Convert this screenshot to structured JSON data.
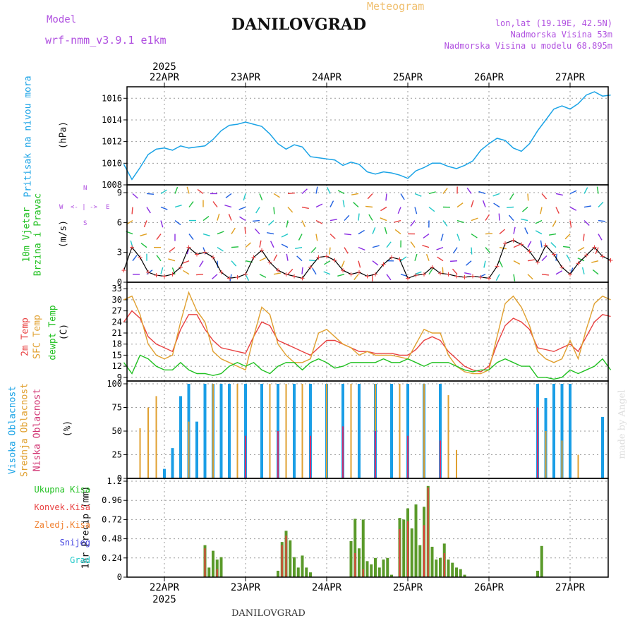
{
  "header": {
    "model_label": "Model",
    "model_name": "wrf-nmm_v3.9.1 e1km",
    "station": "DANILOVGRAD",
    "product": "Meteogram",
    "coords": "lon,lat (19.19E, 42.5N)",
    "elevation": "Nadmorska Visina 53m",
    "model_elevation": "Nadmorska Visina u modelu 68.895m",
    "bottom_station": "DANILOVGRAD",
    "watermark": "made by Angel"
  },
  "time_axis": {
    "year": "2025",
    "days": [
      "22APR",
      "23APR",
      "24APR",
      "25APR",
      "26APR",
      "27APR"
    ]
  },
  "colors": {
    "pressure": "#1aa3e6",
    "temp2m": "#e84040",
    "sfc": "#e0a030",
    "dewpt": "#20c020",
    "high_cloud": "#1a9ee6",
    "mid_cloud": "#e0a030",
    "low_cloud": "#d03070",
    "total_precip": "#5a9a2a",
    "conv_precip": "#e84040",
    "wind_label": "#20c020",
    "model_text": "#b050e0"
  },
  "panels": {
    "pressure": {
      "label": "Pritisak na nivou mora",
      "unit": "(hPa)",
      "ticks": [
        "1008",
        "1010",
        "1012",
        "1014",
        "1016"
      ]
    },
    "wind": {
      "label1": "10m Vjetar",
      "label2": "Brzina i Pravac",
      "unit": "(m/s)",
      "ticks": [
        "0",
        "3",
        "6",
        "9"
      ],
      "compass_n": "N",
      "compass_s": "S",
      "compass_w": "W",
      "compass_e": "E",
      "compass_dash": "<- | ->"
    },
    "temp": {
      "label_2m": "2m Temp",
      "label_sfc": "SFC Temp",
      "label_dew": "dewpt Temp",
      "unit": "(C)",
      "ticks": [
        "9",
        "12",
        "15",
        "18",
        "21",
        "24",
        "27",
        "30",
        "33"
      ]
    },
    "cloud": {
      "label_high": "Visoka Oblacnost",
      "label_mid": "Srednja Oblacnost",
      "label_low": "Niska Oblacnost",
      "unit": "(%)",
      "ticks": [
        "0",
        "25",
        "50",
        "75",
        "100"
      ]
    },
    "precip": {
      "unit": "1hr Precip (mm)",
      "ticks": [
        "0",
        "0.24",
        "0.48",
        "0.72",
        "0.96",
        "1.2"
      ],
      "legend": [
        {
          "label": "Ukupna Kisa",
          "color": "#20c020"
        },
        {
          "label": "Konvek.Kisa",
          "color": "#e84040"
        },
        {
          "label": "Zaledj.Kisa",
          "color": "#f08030"
        },
        {
          "label": "Snijeg",
          "color": "#4040e0"
        },
        {
          "label": "Grad",
          "color": "#20c8c8"
        }
      ]
    }
  },
  "chart_data": [
    {
      "type": "line",
      "title": "",
      "ylabel": "Pritisak na nivou mora (hPa)",
      "ylim": [
        1008,
        1016.8
      ],
      "x_unit": "days from 22APR 00UTC",
      "series": [
        {
          "name": "Pritisak na nivou mora",
          "x": [
            -0.5,
            -0.4,
            -0.3,
            -0.2,
            -0.1,
            0,
            0.1,
            0.2,
            0.3,
            0.4,
            0.5,
            0.6,
            0.7,
            0.8,
            0.9,
            1.0,
            1.1,
            1.2,
            1.3,
            1.4,
            1.5,
            1.6,
            1.7,
            1.8,
            1.9,
            2.0,
            2.1,
            2.2,
            2.3,
            2.4,
            2.5,
            2.6,
            2.7,
            2.8,
            2.9,
            3.0,
            3.1,
            3.2,
            3.3,
            3.4,
            3.5,
            3.6,
            3.7,
            3.8,
            3.9,
            4.0,
            4.1,
            4.2,
            4.3,
            4.4,
            4.5,
            4.6,
            4.7,
            4.8,
            4.9,
            5.0,
            5.1,
            5.2,
            5.3,
            5.4,
            5.5
          ],
          "values": [
            1009.9,
            1008.5,
            1009.6,
            1010.8,
            1011.3,
            1011.4,
            1011.2,
            1011.6,
            1011.4,
            1011.5,
            1011.6,
            1012.2,
            1013.0,
            1013.5,
            1013.6,
            1013.8,
            1013.6,
            1013.4,
            1012.7,
            1011.8,
            1011.3,
            1011.7,
            1011.5,
            1010.6,
            1010.5,
            1010.4,
            1010.3,
            1009.8,
            1010.1,
            1009.9,
            1009.2,
            1009.0,
            1009.2,
            1009.1,
            1008.9,
            1008.6,
            1009.3,
            1009.6,
            1010.0,
            1010.0,
            1009.7,
            1009.5,
            1009.8,
            1010.2,
            1011.2,
            1011.8,
            1012.3,
            1012.1,
            1011.4,
            1011.1,
            1011.8,
            1013.0,
            1014.0,
            1015.0,
            1015.3,
            1015.0,
            1015.5,
            1016.3,
            1016.6,
            1016.2,
            1016.3
          ]
        }
      ]
    },
    {
      "type": "line",
      "title": "",
      "ylabel": "10m Vjetar Brzina i Pravac (m/s)",
      "ylim": [
        0,
        9.5
      ],
      "series": [
        {
          "name": "10m Vjetar",
          "x": [
            -0.5,
            -0.4,
            -0.3,
            -0.2,
            -0.1,
            0,
            0.1,
            0.2,
            0.3,
            0.4,
            0.5,
            0.6,
            0.7,
            0.8,
            0.9,
            1.0,
            1.1,
            1.2,
            1.3,
            1.4,
            1.5,
            1.6,
            1.7,
            1.8,
            1.9,
            2.0,
            2.1,
            2.2,
            2.3,
            2.4,
            2.5,
            2.6,
            2.7,
            2.8,
            2.9,
            3.0,
            3.1,
            3.2,
            3.3,
            3.4,
            3.5,
            3.6,
            3.7,
            3.8,
            3.9,
            4.0,
            4.1,
            4.2,
            4.3,
            4.4,
            4.5,
            4.6,
            4.7,
            4.8,
            4.9,
            5.0,
            5.1,
            5.2,
            5.3,
            5.4,
            5.5
          ],
          "values": [
            1.2,
            3.5,
            2.5,
            1.0,
            0.7,
            0.6,
            0.8,
            1.5,
            3.5,
            2.8,
            3.0,
            2.5,
            1.0,
            0.4,
            0.5,
            0.8,
            2.5,
            3.2,
            2.0,
            1.2,
            0.8,
            0.6,
            0.4,
            1.5,
            2.5,
            2.6,
            2.2,
            1.2,
            0.8,
            1.0,
            0.6,
            0.8,
            1.8,
            2.5,
            2.3,
            0.4,
            0.7,
            0.8,
            1.5,
            0.9,
            0.8,
            0.6,
            0.5,
            0.6,
            0.5,
            0.4,
            1.6,
            3.9,
            4.2,
            3.8,
            3.1,
            2.0,
            3.7,
            2.8,
            1.5,
            0.8,
            1.9,
            2.7,
            3.5,
            2.6,
            2.2
          ]
        }
      ]
    },
    {
      "type": "line",
      "title": "",
      "ylabel": "Temp (C)",
      "ylim": [
        8,
        34
      ],
      "series": [
        {
          "name": "2m Temp",
          "x": [
            -0.5,
            -0.4,
            -0.3,
            -0.2,
            -0.1,
            0,
            0.1,
            0.2,
            0.3,
            0.4,
            0.5,
            0.6,
            0.7,
            0.8,
            0.9,
            1.0,
            1.1,
            1.2,
            1.3,
            1.4,
            1.5,
            1.6,
            1.7,
            1.8,
            1.9,
            2.0,
            2.1,
            2.2,
            2.3,
            2.4,
            2.5,
            2.6,
            2.7,
            2.8,
            2.9,
            3.0,
            3.1,
            3.2,
            3.3,
            3.4,
            3.5,
            3.6,
            3.7,
            3.8,
            3.9,
            4.0,
            4.1,
            4.2,
            4.3,
            4.4,
            4.5,
            4.6,
            4.7,
            4.8,
            4.9,
            5.0,
            5.1,
            5.2,
            5.3,
            5.4,
            5.5
          ],
          "values": [
            24,
            27,
            25,
            20,
            18,
            17,
            16,
            22,
            26,
            26,
            22,
            19,
            17,
            16.5,
            16,
            15.5,
            20,
            24,
            23,
            19,
            18,
            17,
            16,
            15,
            17,
            19,
            19,
            18,
            17,
            16,
            16,
            15.5,
            15.5,
            15.5,
            15,
            15,
            16.5,
            19,
            20,
            19,
            16,
            14,
            12,
            11,
            10.5,
            12,
            18,
            23,
            25,
            24,
            22,
            17,
            16.5,
            16,
            17,
            18,
            16,
            20,
            24,
            26,
            25.5
          ]
        },
        {
          "name": "SFC Temp",
          "x": [
            -0.5,
            -0.4,
            -0.3,
            -0.2,
            -0.1,
            0,
            0.1,
            0.2,
            0.3,
            0.4,
            0.5,
            0.6,
            0.7,
            0.8,
            0.9,
            1.0,
            1.1,
            1.2,
            1.3,
            1.4,
            1.5,
            1.6,
            1.7,
            1.8,
            1.9,
            2.0,
            2.1,
            2.2,
            2.3,
            2.4,
            2.5,
            2.6,
            2.7,
            2.8,
            2.9,
            3.0,
            3.1,
            3.2,
            3.3,
            3.4,
            3.5,
            3.6,
            3.7,
            3.8,
            3.9,
            4.0,
            4.1,
            4.2,
            4.3,
            4.4,
            4.5,
            4.6,
            4.7,
            4.8,
            4.9,
            5.0,
            5.1,
            5.2,
            5.3,
            5.4,
            5.5
          ],
          "values": [
            30,
            31,
            26,
            18,
            15,
            14,
            15,
            24,
            32,
            27,
            24,
            16,
            14,
            13,
            12,
            11,
            20,
            28,
            26,
            18,
            15,
            13,
            13,
            14,
            21,
            22,
            20,
            18,
            17,
            15,
            16,
            15,
            15,
            15,
            14.5,
            14,
            18,
            22,
            21,
            21,
            15,
            12,
            10.5,
            10,
            10,
            11,
            20,
            29,
            31,
            28,
            23,
            16,
            14,
            13,
            14,
            19,
            14,
            22,
            29,
            31,
            30
          ]
        },
        {
          "name": "dewpt Temp",
          "x": [
            -0.5,
            -0.4,
            -0.3,
            -0.2,
            -0.1,
            0,
            0.1,
            0.2,
            0.3,
            0.4,
            0.5,
            0.6,
            0.7,
            0.8,
            0.9,
            1.0,
            1.1,
            1.2,
            1.3,
            1.4,
            1.5,
            1.6,
            1.7,
            1.8,
            1.9,
            2.0,
            2.1,
            2.2,
            2.3,
            2.4,
            2.5,
            2.6,
            2.7,
            2.8,
            2.9,
            3.0,
            3.1,
            3.2,
            3.3,
            3.4,
            3.5,
            3.6,
            3.7,
            3.8,
            3.9,
            4.0,
            4.1,
            4.2,
            4.3,
            4.4,
            4.5,
            4.6,
            4.7,
            4.8,
            4.9,
            5.0,
            5.1,
            5.2,
            5.3,
            5.4,
            5.5
          ],
          "values": [
            13,
            10,
            15,
            14,
            12,
            11,
            11,
            13,
            11,
            10,
            10,
            9.5,
            10,
            12,
            13,
            12,
            13,
            11,
            10,
            12,
            13,
            13,
            11,
            13,
            14,
            13,
            11.5,
            12,
            13,
            13,
            13,
            13,
            14,
            13,
            13,
            14,
            13,
            12,
            13,
            13,
            13,
            12,
            11,
            10.5,
            11,
            11,
            13,
            14,
            13,
            12,
            12,
            9,
            9,
            8.5,
            9,
            11,
            10,
            11,
            12,
            14,
            11
          ]
        }
      ]
    },
    {
      "type": "bar",
      "title": "",
      "ylabel": "Oblacnost (%)",
      "ylim": [
        0,
        100
      ],
      "series": [
        {
          "name": "Visoka Oblacnost",
          "x": [
            0,
            0.1,
            0.2,
            0.3,
            0.4,
            0.5,
            0.6,
            0.7,
            0.8,
            1.0,
            1.2,
            1.4,
            1.6,
            1.8,
            2.0,
            2.2,
            2.4,
            2.6,
            2.8,
            3.0,
            3.2,
            3.4,
            4.6,
            4.7,
            4.8,
            4.9,
            5.0,
            5.4
          ],
          "values": [
            10,
            32,
            87,
            100,
            60,
            100,
            100,
            100,
            100,
            100,
            100,
            100,
            100,
            100,
            100,
            100,
            100,
            100,
            100,
            100,
            100,
            100,
            100,
            85,
            100,
            100,
            100,
            65
          ]
        },
        {
          "name": "Srednja Oblacnost",
          "x": [
            -0.3,
            -0.2,
            -0.1,
            0.3,
            0.6,
            0.9,
            1.3,
            1.5,
            1.7,
            2.0,
            2.3,
            2.6,
            2.9,
            3.2,
            3.5,
            3.6,
            4.7,
            4.9,
            5.1
          ],
          "values": [
            53,
            75,
            87,
            60,
            100,
            100,
            100,
            100,
            100,
            100,
            100,
            100,
            100,
            100,
            88,
            30,
            50,
            40,
            25
          ]
        },
        {
          "name": "Niska Oblacnost",
          "x": [
            1.0,
            1.4,
            1.8,
            2.2,
            2.6,
            3.0,
            3.4,
            4.6
          ],
          "values": [
            45,
            50,
            45,
            55,
            50,
            45,
            40,
            75
          ]
        }
      ]
    },
    {
      "type": "bar",
      "title": "",
      "ylabel": "1hr Precip (mm)",
      "ylim": [
        0,
        1.2
      ],
      "series": [
        {
          "name": "Ukupna Kisa",
          "x": [
            0.5,
            0.55,
            0.6,
            0.65,
            0.7,
            1.4,
            1.45,
            1.5,
            1.55,
            1.6,
            1.65,
            1.7,
            1.75,
            1.8,
            2.3,
            2.35,
            2.4,
            2.45,
            2.5,
            2.55,
            2.6,
            2.65,
            2.7,
            2.75,
            2.8,
            2.9,
            2.95,
            3.0,
            3.05,
            3.1,
            3.15,
            3.2,
            3.25,
            3.3,
            3.35,
            3.4,
            3.45,
            3.5,
            3.55,
            3.6,
            3.65,
            3.7,
            4.6,
            4.65
          ],
          "values": [
            0.4,
            0.12,
            0.33,
            0.22,
            0.25,
            0.08,
            0.44,
            0.58,
            0.46,
            0.25,
            0.12,
            0.27,
            0.12,
            0.06,
            0.45,
            0.73,
            0.36,
            0.72,
            0.2,
            0.16,
            0.24,
            0.12,
            0.22,
            0.24,
            0.03,
            0.74,
            0.72,
            0.86,
            0.61,
            0.91,
            0.4,
            0.88,
            1.14,
            0.38,
            0.22,
            0.24,
            0.42,
            0.22,
            0.18,
            0.12,
            0.1,
            0.03,
            0.08,
            0.39
          ]
        },
        {
          "name": "Konvek.Kisa",
          "x": [
            0.5,
            0.65,
            1.45,
            1.5,
            2.35,
            2.45,
            2.9,
            3.0,
            3.2,
            3.25,
            3.45
          ],
          "values": [
            0.36,
            0.1,
            0.4,
            0.52,
            0.3,
            0.1,
            0.6,
            0.7,
            0.65,
            1.12,
            0.3
          ]
        }
      ]
    }
  ]
}
